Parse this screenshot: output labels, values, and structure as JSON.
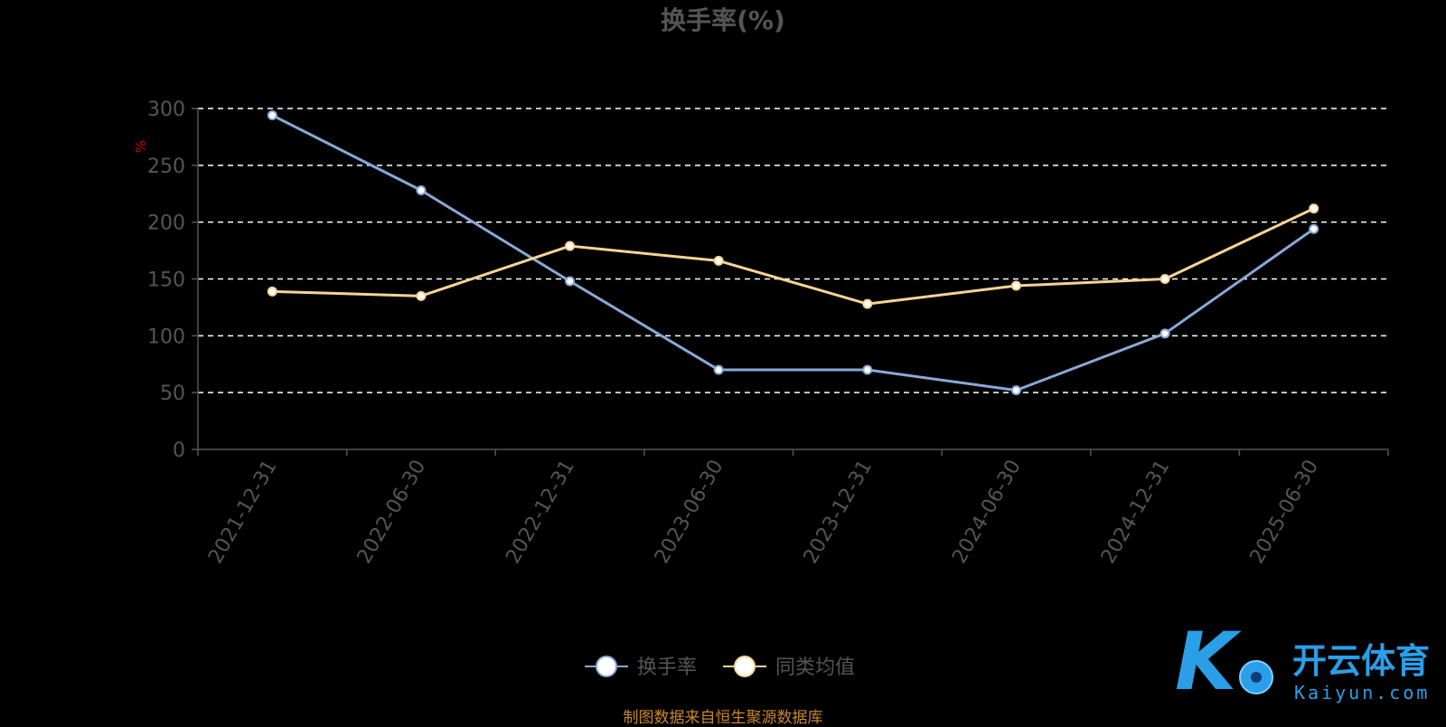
{
  "chart_data": {
    "type": "line",
    "title": "换手率(%)",
    "ylabel": "%",
    "xlabel": "",
    "categories": [
      "2021-12-31",
      "2022-06-30",
      "2022-12-31",
      "2023-06-30",
      "2023-12-31",
      "2024-06-30",
      "2024-12-31",
      "2025-06-30"
    ],
    "ylim": [
      0,
      300
    ],
    "yticks": [
      "0",
      "50",
      "100",
      "150",
      "200",
      "250",
      "300"
    ],
    "grid": true,
    "legend_position": "bottom-center",
    "series": [
      {
        "name": "换手率",
        "color": "#8aa8d8",
        "values": [
          294,
          228,
          148,
          70,
          70,
          52,
          102,
          194
        ]
      },
      {
        "name": "同类均值",
        "color": "#f5d494",
        "values": [
          139,
          135,
          179,
          166,
          128,
          144,
          150,
          212
        ]
      }
    ]
  },
  "source_note": "制图数据来自恒生聚源数据库",
  "watermark": {
    "brand_cn": "开云体育",
    "brand_en": "Kaiyun.com"
  },
  "colors": {
    "background": "#000000",
    "grid": "#ffffff",
    "axis": "#555555",
    "ylabel": "#cc0000",
    "source": "#c9882a",
    "watermark": "#2a9fe8"
  }
}
